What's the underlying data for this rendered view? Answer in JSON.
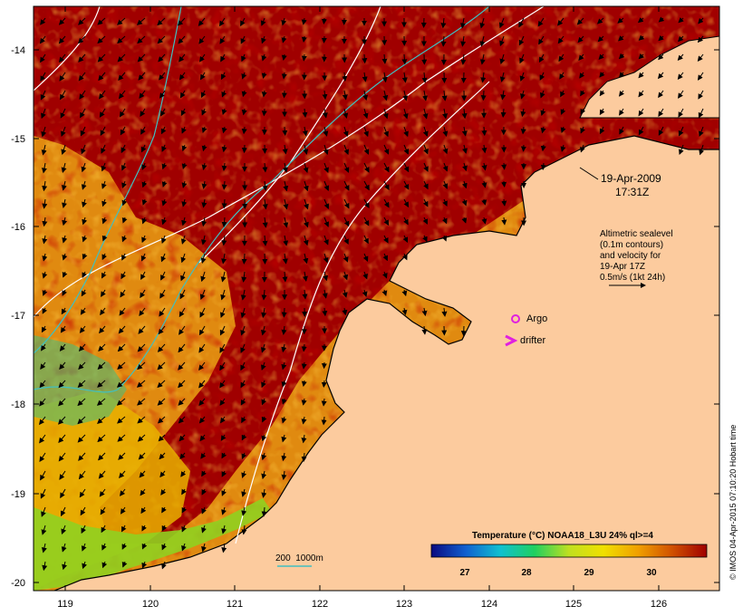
{
  "map": {
    "timestamp_date": "19-Apr-2009",
    "timestamp_time": "17:31Z",
    "altimetry_lines": [
      "Altimetric sealevel",
      "(0.1m contours)",
      "and velocity for",
      "19-Apr 17Z",
      "0.5m/s (1kt 24h)"
    ],
    "argo_label": "Argo",
    "drifter_label": "drifter",
    "bathymetry_label": "200  1000m",
    "credit": "© IMOS 04-Apr-2015 07:10:20 Hobart time",
    "lat_ticks": [
      "-14",
      "-15",
      "-16",
      "-17",
      "-18",
      "-19",
      "-20"
    ],
    "lon_ticks": [
      "119",
      "120",
      "121",
      "122",
      "123",
      "124",
      "125",
      "126"
    ],
    "colorbar": {
      "title": "Temperature (°C) NOAA18_L3U 24% ql>=4",
      "ticks": [
        "27",
        "28",
        "29",
        "30"
      ],
      "stops": [
        "#0a0a80",
        "#1060d0",
        "#10c0d0",
        "#20d060",
        "#c0e020",
        "#f0e000",
        "#f0a000",
        "#d05000",
        "#a00000"
      ]
    },
    "colors": {
      "land": "#fccb9e",
      "sst_dark": "#a00000",
      "bathy_200": "#40c0c0",
      "argo": "#e020e0",
      "contour": "#ffffff"
    }
  }
}
